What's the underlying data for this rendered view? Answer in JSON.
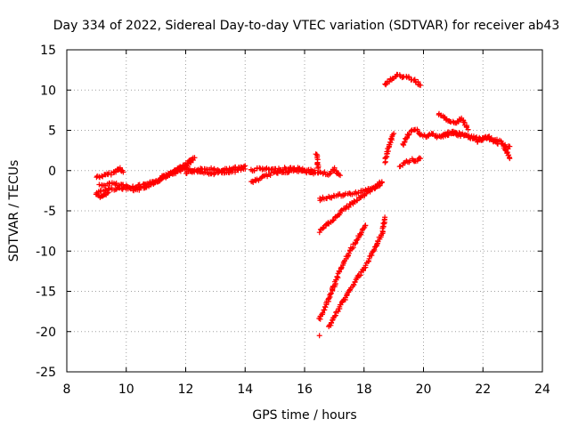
{
  "chart_data": {
    "type": "scatter",
    "title": "Day 334 of 2022, Sidereal Day-to-day VTEC variation (SDTVAR) for receiver ab43",
    "xlabel": "GPS time / hours",
    "ylabel": "SDTVAR / TECUs",
    "xlim": [
      8,
      24
    ],
    "ylim": [
      -25,
      15
    ],
    "xticks": [
      "8",
      "10",
      "12",
      "14",
      "16",
      "18",
      "20",
      "22",
      "24"
    ],
    "yticks": [
      "15",
      "10",
      "5",
      "0",
      "-5",
      "-10",
      "-15",
      "-20",
      "-25"
    ],
    "grid": true,
    "marker": "plus",
    "color": "#ff0000",
    "tracks": [
      {
        "x": [
          9.0,
          9.3,
          9.6,
          9.8,
          9.9
        ],
        "y": [
          -0.8,
          -0.6,
          -0.2,
          0.3,
          -0.2
        ]
      },
      {
        "x": [
          9.0,
          9.4,
          9.8,
          10.2,
          10.6,
          11.0,
          11.3,
          11.6,
          11.9,
          12.2
        ],
        "y": [
          -2.8,
          -2.3,
          -2.2,
          -2.1,
          -1.8,
          -1.4,
          -0.6,
          0.0,
          0.5,
          1.4
        ]
      },
      {
        "x": [
          9.1,
          9.5,
          9.9,
          10.3,
          10.7,
          11.1,
          11.5,
          11.8,
          12.1,
          12.3
        ],
        "y": [
          -1.9,
          -1.6,
          -1.9,
          -2.4,
          -2.0,
          -1.2,
          -0.4,
          0.3,
          0.8,
          1.6
        ]
      },
      {
        "x": [
          9.0,
          9.2,
          9.4
        ],
        "y": [
          -3.0,
          -3.3,
          -2.7
        ]
      },
      {
        "x": [
          12.0,
          12.4,
          12.8,
          13.2,
          13.6,
          14.0
        ],
        "y": [
          -0.3,
          0.1,
          0.2,
          0.0,
          0.3,
          0.2
        ]
      },
      {
        "x": [
          11.2,
          11.6,
          12.0,
          12.4,
          12.8,
          13.2,
          13.6,
          14.0
        ],
        "y": [
          -0.9,
          -0.3,
          0.3,
          -0.2,
          -0.4,
          -0.2,
          -0.1,
          0.6
        ]
      },
      {
        "x": [
          14.2,
          14.5,
          14.8,
          15.1,
          15.4,
          15.7,
          16.0,
          16.3
        ],
        "y": [
          -1.5,
          -1.0,
          -0.5,
          -0.2,
          -0.1,
          0.0,
          -0.1,
          -0.4
        ]
      },
      {
        "x": [
          14.2,
          14.6,
          15.0,
          15.4,
          15.8,
          16.2,
          16.6,
          16.8,
          17.0,
          17.2
        ],
        "y": [
          0.1,
          0.2,
          0.1,
          0.3,
          0.2,
          0.0,
          -0.3,
          -0.4,
          0.2,
          -0.6
        ]
      },
      {
        "x": [
          16.4,
          16.45
        ],
        "y": [
          2.0,
          0.3
        ]
      },
      {
        "x": [
          16.5,
          16.8,
          17.1,
          17.4,
          17.7,
          18.0,
          18.3,
          18.6
        ],
        "y": [
          -3.6,
          -3.3,
          -3.1,
          -3.0,
          -2.8,
          -2.5,
          -2.2,
          -1.4
        ]
      },
      {
        "x": [
          16.5,
          16.8,
          17.1,
          17.4,
          17.7,
          18.0,
          18.3,
          18.6
        ],
        "y": [
          -7.6,
          -6.6,
          -5.6,
          -4.6,
          -3.8,
          -3.0,
          -2.3,
          -1.5
        ]
      },
      {
        "x": [
          16.5,
          16.7,
          16.9,
          17.1,
          17.3,
          17.5,
          17.7,
          17.9,
          18.05
        ],
        "y": [
          -18.5,
          -17.0,
          -15.2,
          -13.2,
          -11.6,
          -10.2,
          -9.0,
          -7.8,
          -6.8
        ]
      },
      {
        "x": [
          16.8,
          17.0,
          17.2,
          17.4,
          17.6,
          17.8,
          18.0,
          18.2,
          18.4,
          18.6,
          18.7
        ],
        "y": [
          -19.5,
          -18.2,
          -16.8,
          -15.6,
          -14.4,
          -13.2,
          -12.2,
          -10.8,
          -9.5,
          -7.8,
          -5.8
        ]
      },
      {
        "x": [
          16.5
        ],
        "y": [
          -20.5
        ]
      },
      {
        "x": [
          18.7,
          18.8,
          18.9,
          19.0
        ],
        "y": [
          1.0,
          2.5,
          3.8,
          4.6
        ]
      },
      {
        "x": [
          18.7,
          18.9,
          19.1,
          19.4,
          19.7,
          19.9
        ],
        "y": [
          10.6,
          11.3,
          11.8,
          11.6,
          11.3,
          10.6
        ]
      },
      {
        "x": [
          19.2,
          19.4,
          19.6,
          19.8,
          19.9
        ],
        "y": [
          0.6,
          1.0,
          1.3,
          1.3,
          1.5
        ]
      },
      {
        "x": [
          19.3,
          19.5,
          19.7,
          19.9,
          20.1,
          20.3,
          20.5,
          20.7,
          20.9,
          21.1
        ],
        "y": [
          3.2,
          4.5,
          5.2,
          4.5,
          4.3,
          4.5,
          4.1,
          4.4,
          4.9,
          4.6
        ]
      },
      {
        "x": [
          20.5,
          20.7,
          20.9,
          21.1,
          21.3,
          21.5
        ],
        "y": [
          7.0,
          6.6,
          6.1,
          6.0,
          6.5,
          5.1
        ]
      },
      {
        "x": [
          20.6,
          21.0,
          21.4,
          21.8,
          22.2,
          22.6,
          22.8,
          22.9
        ],
        "y": [
          4.2,
          4.6,
          4.3,
          4.0,
          3.9,
          3.6,
          2.4,
          1.5
        ]
      },
      {
        "x": [
          21.0,
          21.4,
          21.8,
          22.2,
          22.5
        ],
        "y": [
          4.8,
          4.4,
          3.7,
          4.2,
          3.3
        ]
      },
      {
        "x": [
          22.7,
          22.8,
          22.9
        ],
        "y": [
          3.2,
          2.6,
          3.0
        ]
      }
    ]
  }
}
